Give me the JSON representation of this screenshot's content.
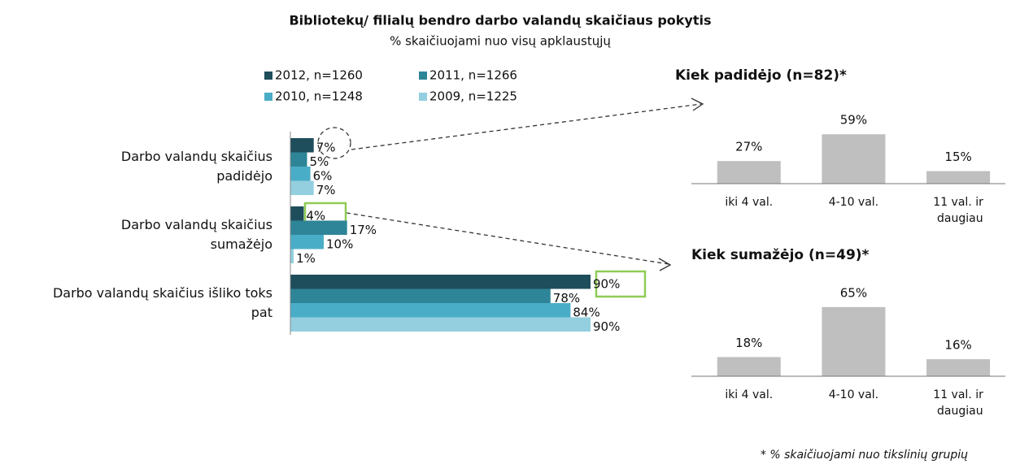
{
  "title": "Bibliotekų/ filialų bendro darbo valandų skaičiaus pokytis",
  "subtitle": "% skaičiuojami nuo visų apklaustųjų",
  "footnote": "* % skaičiuojami nuo tikslinių grupių",
  "chart_data": [
    {
      "type": "hbar",
      "categories": [
        "Darbo valandų skaičius padidėjo",
        "Darbo valandų skaičius sumažėjo",
        "Darbo valandų skaičius išliko toks pat"
      ],
      "xlim": [
        0,
        100
      ],
      "series": [
        {
          "name": "2012, n=1260",
          "color": "#1e4d5c",
          "values": [
            7,
            4,
            90
          ],
          "value_labels": [
            "7%",
            "4%",
            "90%"
          ]
        },
        {
          "name": "2011, n=1266",
          "color": "#2e8597",
          "values": [
            5,
            17,
            78
          ],
          "value_labels": [
            "5%",
            "17%",
            "78%"
          ]
        },
        {
          "name": "2010, n=1248",
          "color": "#4aadc7",
          "values": [
            6,
            10,
            84
          ],
          "value_labels": [
            "6%",
            "10%",
            "84%"
          ]
        },
        {
          "name": "2009, n=1225",
          "color": "#93cfdf",
          "values": [
            7,
            1,
            90
          ],
          "value_labels": [
            "7%",
            "1%",
            "90%"
          ]
        }
      ]
    },
    {
      "type": "bar",
      "title": "Kiek padidėjo (n=82)*",
      "color": "#bfbfbf",
      "ylim": [
        0,
        100
      ],
      "categories": [
        "iki 4 val.",
        "4-10 val.",
        "11 val. ir daugiau"
      ],
      "values": [
        27,
        59,
        15
      ],
      "value_labels": [
        "27%",
        "59%",
        "15%"
      ]
    },
    {
      "type": "bar",
      "title": "Kiek sumažėjo (n=49)*",
      "color": "#bfbfbf",
      "ylim": [
        0,
        100
      ],
      "categories": [
        "iki 4 val.",
        "4-10 val.",
        "11 val. ir daugiau"
      ],
      "values": [
        18,
        65,
        16
      ],
      "value_labels": [
        "18%",
        "65%",
        "16%"
      ]
    }
  ]
}
